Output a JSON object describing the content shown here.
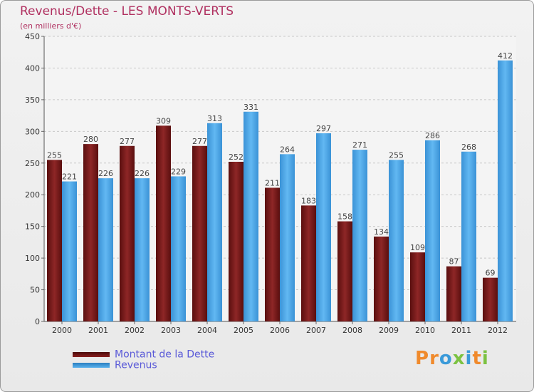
{
  "chart_data": {
    "type": "bar",
    "title": "Revenus/Dette - LES MONTS-VERTS",
    "subtitle": "(en milliers d'€)",
    "xlabel": "",
    "ylabel": "",
    "ylim": [
      0,
      450
    ],
    "yticks": [
      0,
      50,
      100,
      150,
      200,
      250,
      300,
      350,
      400,
      450
    ],
    "grid": true,
    "categories": [
      "2000",
      "2001",
      "2002",
      "2003",
      "2004",
      "2005",
      "2006",
      "2007",
      "2008",
      "2009",
      "2010",
      "2011",
      "2012"
    ],
    "series": [
      {
        "name": "Montant de la Dette",
        "color": "#7a1a1a",
        "values": [
          255,
          280,
          277,
          309,
          277,
          252,
          211,
          183,
          158,
          134,
          109,
          87,
          69
        ]
      },
      {
        "name": "Revenus",
        "color": "#4aa3e6",
        "values": [
          221,
          226,
          226,
          229,
          313,
          331,
          264,
          297,
          271,
          255,
          286,
          268,
          412
        ]
      }
    ],
    "legend_position": "bottom-left"
  },
  "brand": {
    "logo_text": "Proxiti",
    "logo_colors": [
      "#f08a2c",
      "#f08a2c",
      "#3a9ad9",
      "#7cc242",
      "#3a9ad9",
      "#f08a2c",
      "#7cc242"
    ]
  }
}
